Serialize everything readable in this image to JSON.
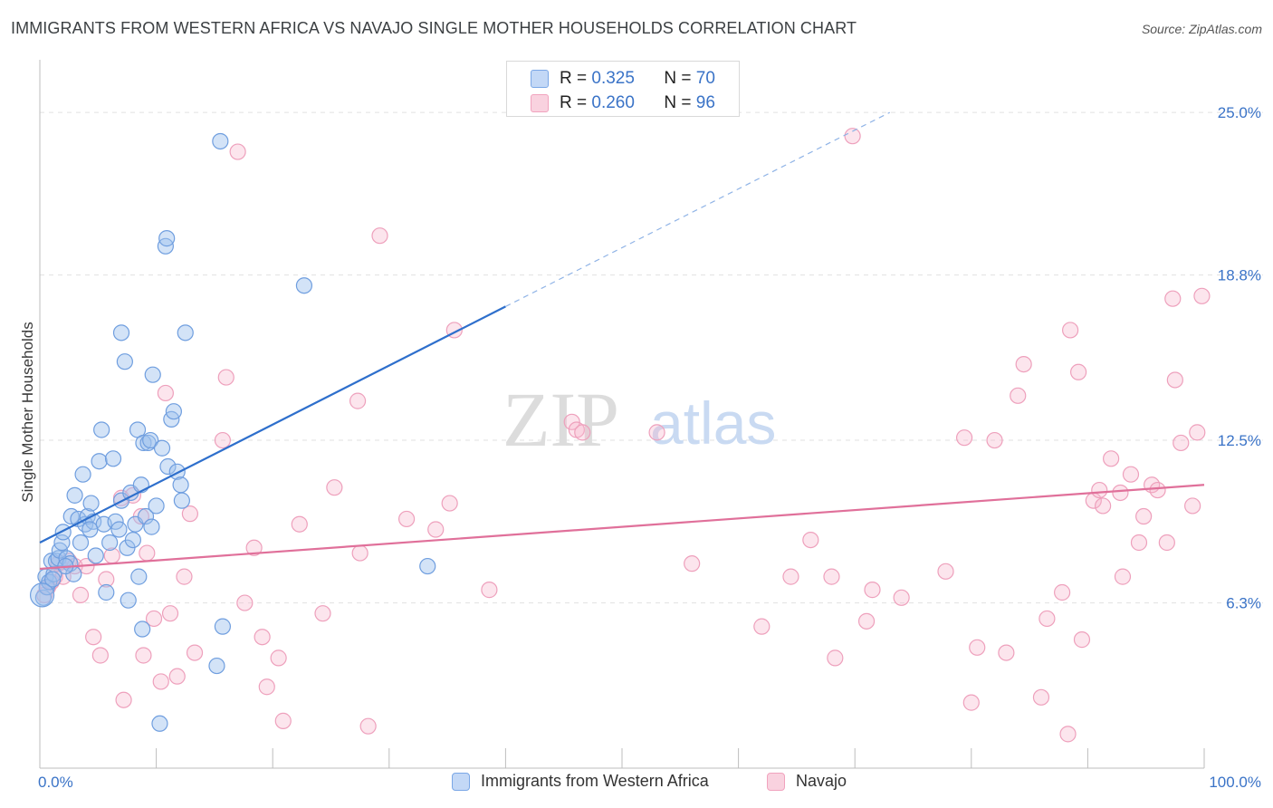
{
  "title": "IMMIGRANTS FROM WESTERN AFRICA VS NAVAJO SINGLE MOTHER HOUSEHOLDS CORRELATION CHART",
  "source": "Source: ZipAtlas.com",
  "watermark": {
    "zip": "ZIP",
    "atlas": "atlas"
  },
  "legend": {
    "rows": [
      {
        "r_label": "R =",
        "r_value": "0.325",
        "n_label": "N =",
        "n_value": "70"
      },
      {
        "r_label": "R =",
        "r_value": "0.260",
        "n_label": "N =",
        "n_value": "96"
      }
    ]
  },
  "bottom_legend": [
    "Immigrants from Western Africa",
    "Navajo"
  ],
  "colors": {
    "blue": "#7aa7e6",
    "blue_line": "#2e6fcc",
    "pink": "#f1a3be",
    "pink_line": "#e0709a",
    "tick": "#3a73c7"
  },
  "chart_data": {
    "type": "scatter",
    "title": "IMMIGRANTS FROM WESTERN AFRICA VS NAVAJO SINGLE MOTHER HOUSEHOLDS CORRELATION CHART",
    "xlabel": "",
    "ylabel": "Single Mother Households",
    "xlim": [
      0,
      100
    ],
    "ylim": [
      0,
      26.8
    ],
    "x_tick_labels": [
      "0.0%",
      "100.0%"
    ],
    "y_ticks": [
      6.3,
      12.5,
      18.8,
      25.0
    ],
    "y_tick_labels": [
      "6.3%",
      "12.5%",
      "18.8%",
      "25.0%"
    ],
    "series": [
      {
        "name": "Immigrants from Western Africa",
        "R": 0.325,
        "N": 70,
        "trend": {
          "x0": 0,
          "y0": 8.6,
          "x1": 40,
          "y1": 17.6,
          "dashed_to_x": 73,
          "dashed_to_y": 25.0
        },
        "points": [
          [
            0.3,
            6.5
          ],
          [
            0.5,
            7.3
          ],
          [
            0.6,
            6.9
          ],
          [
            0.8,
            7.1
          ],
          [
            1.0,
            7.9
          ],
          [
            1.2,
            7.4
          ],
          [
            1.4,
            7.9
          ],
          [
            1.6,
            8.0
          ],
          [
            1.7,
            8.3
          ],
          [
            1.9,
            8.6
          ],
          [
            2.0,
            9.0
          ],
          [
            2.3,
            8.0
          ],
          [
            2.6,
            7.8
          ],
          [
            2.7,
            9.6
          ],
          [
            2.9,
            7.4
          ],
          [
            3.0,
            10.4
          ],
          [
            3.3,
            9.5
          ],
          [
            3.5,
            8.6
          ],
          [
            3.7,
            11.2
          ],
          [
            3.9,
            9.3
          ],
          [
            4.1,
            9.6
          ],
          [
            4.4,
            10.1
          ],
          [
            4.6,
            9.4
          ],
          [
            4.8,
            8.1
          ],
          [
            5.1,
            11.7
          ],
          [
            5.3,
            12.9
          ],
          [
            5.5,
            9.3
          ],
          [
            5.7,
            6.7
          ],
          [
            6.0,
            8.6
          ],
          [
            6.3,
            11.8
          ],
          [
            6.5,
            9.4
          ],
          [
            6.8,
            9.1
          ],
          [
            7.0,
            10.2
          ],
          [
            7.3,
            15.5
          ],
          [
            7.5,
            8.4
          ],
          [
            7.0,
            16.6
          ],
          [
            7.6,
            6.4
          ],
          [
            7.8,
            10.5
          ],
          [
            8.0,
            8.7
          ],
          [
            8.2,
            9.3
          ],
          [
            8.4,
            12.9
          ],
          [
            8.5,
            7.3
          ],
          [
            8.7,
            10.8
          ],
          [
            8.8,
            5.3
          ],
          [
            8.9,
            12.4
          ],
          [
            9.1,
            9.6
          ],
          [
            9.3,
            12.4
          ],
          [
            9.5,
            12.5
          ],
          [
            9.6,
            9.2
          ],
          [
            9.7,
            15.0
          ],
          [
            10.0,
            10.0
          ],
          [
            10.3,
            1.7
          ],
          [
            10.5,
            12.2
          ],
          [
            10.8,
            19.9
          ],
          [
            10.9,
            20.2
          ],
          [
            11.0,
            11.5
          ],
          [
            11.3,
            13.3
          ],
          [
            11.5,
            13.6
          ],
          [
            11.8,
            11.3
          ],
          [
            12.1,
            10.8
          ],
          [
            12.2,
            10.2
          ],
          [
            12.5,
            16.6
          ],
          [
            15.5,
            23.9
          ],
          [
            15.7,
            5.4
          ],
          [
            15.2,
            3.9
          ],
          [
            22.7,
            18.4
          ],
          [
            33.3,
            7.7
          ],
          [
            1.1,
            7.2
          ],
          [
            2.2,
            7.7
          ],
          [
            4.3,
            9.1
          ]
        ]
      },
      {
        "name": "Navajo",
        "R": 0.26,
        "N": 96,
        "trend": {
          "x0": 0,
          "y0": 7.6,
          "x1": 100,
          "y1": 10.8
        },
        "points": [
          [
            0.4,
            6.6
          ],
          [
            0.7,
            6.9
          ],
          [
            1.0,
            7.1
          ],
          [
            1.3,
            7.3
          ],
          [
            1.6,
            7.8
          ],
          [
            2.0,
            7.3
          ],
          [
            2.5,
            7.9
          ],
          [
            3.0,
            7.7
          ],
          [
            3.5,
            6.6
          ],
          [
            4.0,
            7.7
          ],
          [
            4.6,
            5.0
          ],
          [
            5.2,
            4.3
          ],
          [
            5.7,
            7.2
          ],
          [
            6.2,
            8.1
          ],
          [
            7.0,
            10.3
          ],
          [
            7.2,
            2.6
          ],
          [
            8.0,
            10.4
          ],
          [
            8.7,
            9.6
          ],
          [
            8.9,
            4.3
          ],
          [
            9.2,
            8.2
          ],
          [
            9.8,
            5.7
          ],
          [
            10.4,
            3.3
          ],
          [
            10.8,
            14.3
          ],
          [
            11.2,
            5.9
          ],
          [
            11.8,
            3.5
          ],
          [
            12.4,
            7.3
          ],
          [
            12.9,
            9.7
          ],
          [
            13.3,
            4.4
          ],
          [
            15.7,
            12.5
          ],
          [
            16.0,
            14.9
          ],
          [
            17.0,
            23.5
          ],
          [
            17.6,
            6.3
          ],
          [
            18.4,
            8.4
          ],
          [
            19.1,
            5.0
          ],
          [
            19.5,
            3.1
          ],
          [
            20.5,
            4.2
          ],
          [
            20.9,
            1.8
          ],
          [
            22.3,
            9.3
          ],
          [
            24.3,
            5.9
          ],
          [
            25.3,
            10.7
          ],
          [
            27.3,
            14.0
          ],
          [
            27.5,
            8.2
          ],
          [
            28.2,
            1.6
          ],
          [
            29.2,
            20.3
          ],
          [
            31.5,
            9.5
          ],
          [
            34.0,
            9.1
          ],
          [
            35.2,
            10.1
          ],
          [
            35.6,
            16.7
          ],
          [
            38.6,
            6.8
          ],
          [
            45.7,
            13.2
          ],
          [
            46.1,
            12.9
          ],
          [
            46.6,
            12.8
          ],
          [
            53.0,
            12.8
          ],
          [
            56.0,
            7.8
          ],
          [
            62.0,
            5.4
          ],
          [
            64.5,
            7.3
          ],
          [
            66.2,
            8.7
          ],
          [
            68.0,
            7.3
          ],
          [
            68.3,
            4.2
          ],
          [
            69.8,
            24.1
          ],
          [
            71.0,
            5.6
          ],
          [
            71.5,
            6.8
          ],
          [
            74.0,
            6.5
          ],
          [
            77.8,
            7.5
          ],
          [
            79.4,
            12.6
          ],
          [
            80.0,
            2.5
          ],
          [
            80.5,
            4.6
          ],
          [
            82.0,
            12.5
          ],
          [
            83.0,
            4.4
          ],
          [
            84.0,
            14.2
          ],
          [
            84.5,
            15.4
          ],
          [
            86.0,
            2.7
          ],
          [
            86.5,
            5.7
          ],
          [
            87.8,
            6.7
          ],
          [
            88.3,
            1.3
          ],
          [
            88.5,
            16.7
          ],
          [
            89.2,
            15.1
          ],
          [
            89.5,
            4.9
          ],
          [
            90.5,
            10.2
          ],
          [
            91.0,
            10.6
          ],
          [
            91.3,
            10.0
          ],
          [
            92.0,
            11.8
          ],
          [
            92.8,
            10.5
          ],
          [
            93.0,
            7.3
          ],
          [
            93.7,
            11.2
          ],
          [
            94.4,
            8.6
          ],
          [
            94.8,
            9.6
          ],
          [
            95.5,
            10.8
          ],
          [
            96.0,
            10.6
          ],
          [
            96.8,
            8.6
          ],
          [
            97.3,
            17.9
          ],
          [
            97.5,
            14.8
          ],
          [
            98.0,
            12.4
          ],
          [
            99.0,
            10.0
          ],
          [
            99.4,
            12.8
          ],
          [
            99.8,
            18.0
          ]
        ]
      }
    ]
  }
}
